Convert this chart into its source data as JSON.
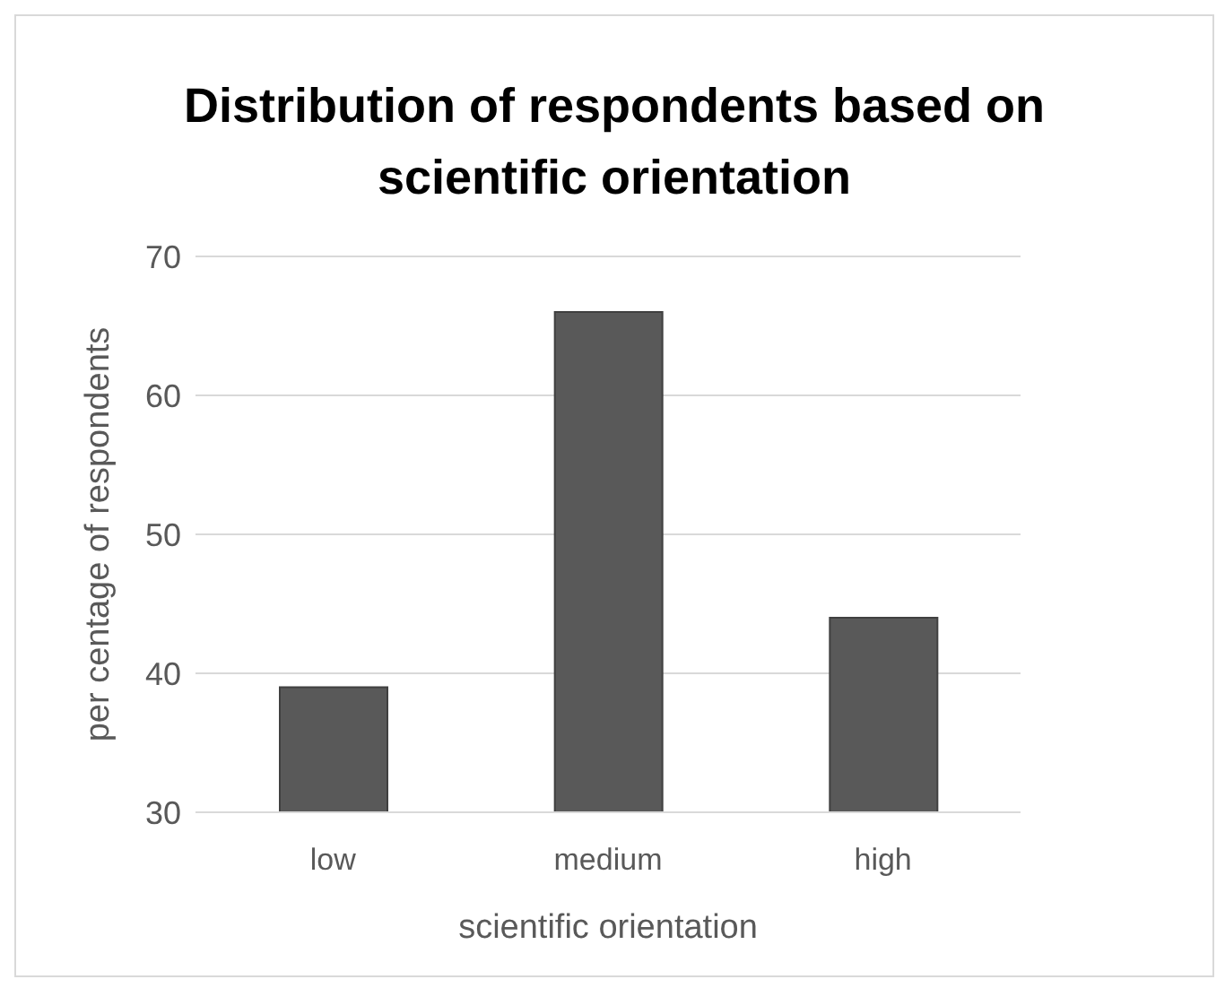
{
  "chart_data": {
    "type": "bar",
    "title": "Distribution of respondents based on scientific orientation",
    "xlabel": "scientific orientation",
    "ylabel": "per centage of respondents",
    "categories": [
      "low",
      "medium",
      "high"
    ],
    "values": [
      39,
      66,
      44
    ],
    "color": "#595959",
    "ylim": [
      30,
      70
    ],
    "yticks": [
      30,
      40,
      50,
      60,
      70
    ],
    "grid": "y"
  }
}
